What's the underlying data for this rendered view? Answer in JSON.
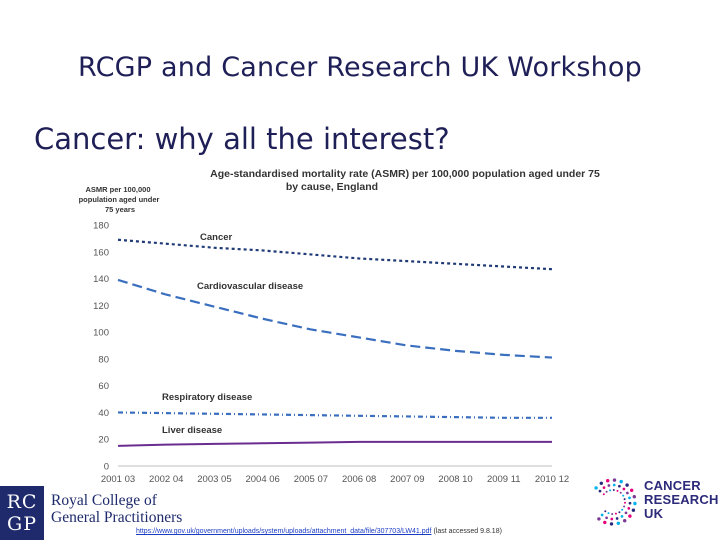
{
  "slide": {
    "title": "RCGP and Cancer Research UK Workshop",
    "subtitle": "Cancer: why all the interest?"
  },
  "chart_data": {
    "type": "line",
    "title_line1": "Age-standardised mortality rate (ASMR) per 100,000 population aged under 75",
    "title_line2": "by cause, England",
    "ylabel_lines": [
      "ASMR per 100,000",
      "population aged under",
      "75 years"
    ],
    "ylim": [
      0,
      180
    ],
    "yticks": [
      0,
      20,
      40,
      60,
      80,
      100,
      120,
      140,
      160,
      180
    ],
    "categories": [
      "2001 03",
      "2002 04",
      "2003 05",
      "2004 06",
      "2005 07",
      "2006 08",
      "2007 09",
      "2008 10",
      "2009 11",
      "2010 12"
    ],
    "series": [
      {
        "name": "Cancer",
        "color": "#1f3a77",
        "dash": "3,3",
        "values": [
          169,
          166,
          163,
          161,
          158,
          155,
          153,
          151,
          149,
          147
        ]
      },
      {
        "name": "Cardiovascular disease",
        "color": "#3a6fbf",
        "dash": "10,5",
        "values": [
          139,
          128,
          119,
          110,
          102,
          96,
          90,
          86,
          83,
          81
        ]
      },
      {
        "name": "Respiratory disease",
        "color": "#3a6fbf",
        "dash": "5,3,1,3",
        "values": [
          40,
          39.5,
          39,
          38.5,
          38,
          37.5,
          37,
          36.5,
          36,
          36
        ]
      },
      {
        "name": "Liver disease",
        "color": "#6a2d8f",
        "dash": "",
        "values": [
          15,
          16,
          16.5,
          17,
          17.5,
          18,
          18,
          18,
          18,
          18
        ]
      }
    ]
  },
  "footer": {
    "link": "https://www.gov.uk/government/uploads/system/uploads/attachment_data/file/307703/LW41.pdf",
    "note": "(last accessed 9.8.18)"
  },
  "logos": {
    "rcgp_badge_top": "RC",
    "rcgp_badge_bottom": "GP",
    "rcgp_name_line1": "Royal College of",
    "rcgp_name_line2": "General Practitioners",
    "cruk_line1": "CANCER",
    "cruk_line2": "RESEARCH",
    "cruk_line3": "UK"
  },
  "colors": {
    "title": "#1f1f57",
    "rcgp_navy": "#1e2a6b",
    "cruk_navy": "#2c2a7a"
  }
}
